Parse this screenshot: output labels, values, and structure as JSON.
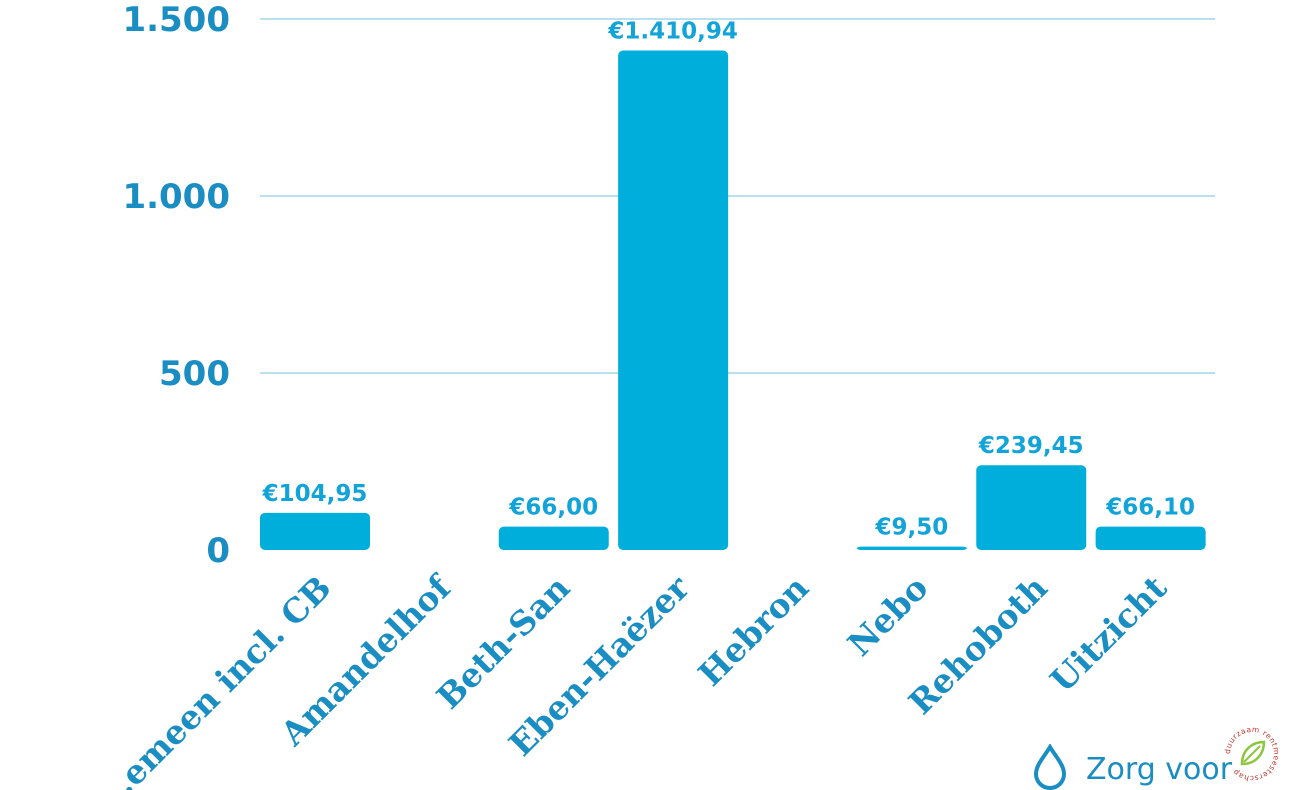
{
  "chart_data": {
    "type": "bar",
    "categories": [
      "...emeen incl. CB",
      "Amandelhof",
      "Beth-San",
      "Eben-Haëzer",
      "Hebron",
      "Nebo",
      "Rehoboth",
      "Uitzicht"
    ],
    "values": [
      104.95,
      0,
      66.0,
      1410.94,
      0,
      9.5,
      239.45,
      66.1
    ],
    "value_labels": [
      "€104,95",
      "",
      "€66,00",
      "€1.410,94",
      "",
      "€9,50",
      "€239,45",
      "€66,10"
    ],
    "yticks": [
      {
        "value": 0,
        "label": "0"
      },
      {
        "value": 500,
        "label": "500"
      },
      {
        "value": 1000,
        "label": "1.000"
      },
      {
        "value": 1500,
        "label": "1.500"
      }
    ],
    "ylim": [
      0,
      1500
    ],
    "grid": true,
    "bar_color": "#00aedb",
    "text_color": "#1a8ec3"
  },
  "logo": {
    "text": "Zorg voor",
    "seal_text": "duurzaam rentmeesterschap",
    "seal_color": "#c0392b",
    "leaf_color": "#8cc63f",
    "icon": "water-drop-icon"
  }
}
